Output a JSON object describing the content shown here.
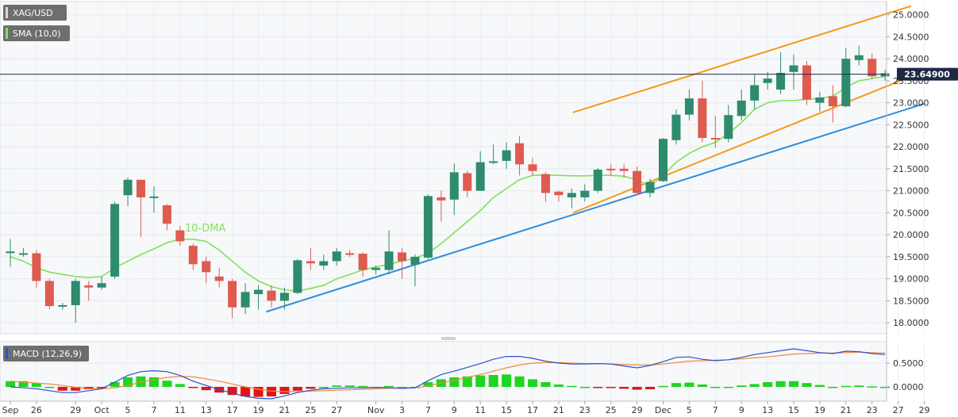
{
  "chart_data": {
    "type": "candlestick",
    "panes": {
      "price": {
        "symbol": "XAG/USD",
        "indicator": "SMA (10,0)",
        "ylim": [
          17.75,
          25.3
        ],
        "yticks": [
          "25.0000",
          "24.5000",
          "24.0000",
          "23.5000",
          "23.0000",
          "22.5000",
          "22.0000",
          "21.5000",
          "21.0000",
          "20.5000",
          "20.0000",
          "19.5000",
          "19.0000",
          "18.5000",
          "18.0000"
        ],
        "last_price": "23.64900",
        "last_value": 23.649,
        "annotation": "10-DMA"
      },
      "macd": {
        "label": "MACD (12,26,9)",
        "ylim": [
          -0.3,
          0.95
        ],
        "yticks": [
          "0.5000",
          "0.0000"
        ]
      }
    },
    "x_axis": {
      "ticks": [
        {
          "i": 0,
          "label": "Sep"
        },
        {
          "i": 2,
          "label": "26"
        },
        {
          "i": 5,
          "label": "29"
        },
        {
          "i": 7,
          "label": "Oct"
        },
        {
          "i": 9,
          "label": "5"
        },
        {
          "i": 11,
          "label": "7"
        },
        {
          "i": 13,
          "label": "11"
        },
        {
          "i": 15,
          "label": "13"
        },
        {
          "i": 17,
          "label": "17"
        },
        {
          "i": 19,
          "label": "19"
        },
        {
          "i": 21,
          "label": "21"
        },
        {
          "i": 23,
          "label": "25"
        },
        {
          "i": 25,
          "label": "27"
        },
        {
          "i": 28,
          "label": "Nov"
        },
        {
          "i": 30,
          "label": "3"
        },
        {
          "i": 32,
          "label": "7"
        },
        {
          "i": 34,
          "label": "9"
        },
        {
          "i": 36,
          "label": "11"
        },
        {
          "i": 38,
          "label": "15"
        },
        {
          "i": 40,
          "label": "17"
        },
        {
          "i": 42,
          "label": "21"
        },
        {
          "i": 44,
          "label": "23"
        },
        {
          "i": 46,
          "label": "25"
        },
        {
          "i": 48,
          "label": "29"
        },
        {
          "i": 50,
          "label": "Dec"
        },
        {
          "i": 52,
          "label": "5"
        },
        {
          "i": 54,
          "label": "7"
        },
        {
          "i": 56,
          "label": "9"
        },
        {
          "i": 58,
          "label": "13"
        },
        {
          "i": 60,
          "label": "15"
        },
        {
          "i": 62,
          "label": "19"
        },
        {
          "i": 64,
          "label": "21"
        },
        {
          "i": 66,
          "label": "23"
        },
        {
          "i": 68,
          "label": "27"
        },
        {
          "i": 70,
          "label": "29"
        }
      ]
    },
    "candles": [
      [
        19.62,
        19.62,
        19.9,
        19.28
      ],
      [
        19.58,
        19.58,
        19.7,
        19.5
      ],
      [
        19.58,
        18.95,
        19.65,
        18.8
      ],
      [
        18.95,
        18.38,
        19.0,
        18.3
      ],
      [
        18.38,
        18.4,
        18.45,
        18.3
      ],
      [
        18.4,
        18.95,
        19.0,
        18.0
      ],
      [
        18.85,
        18.8,
        18.95,
        18.5
      ],
      [
        18.8,
        18.9,
        19.05,
        18.75
      ],
      [
        19.05,
        20.7,
        20.75,
        19.0
      ],
      [
        20.9,
        21.25,
        21.3,
        20.65
      ],
      [
        21.25,
        20.85,
        21.15,
        19.95
      ],
      [
        20.85,
        20.87,
        21.1,
        20.5
      ],
      [
        20.67,
        20.25,
        20.7,
        20.1
      ],
      [
        20.1,
        19.85,
        20.2,
        19.75
      ],
      [
        19.75,
        19.33,
        19.8,
        19.2
      ],
      [
        19.4,
        19.15,
        19.5,
        18.9
      ],
      [
        19.05,
        18.95,
        19.25,
        18.8
      ],
      [
        18.95,
        18.35,
        19.0,
        18.1
      ],
      [
        18.35,
        18.7,
        18.9,
        18.2
      ],
      [
        18.65,
        18.75,
        18.85,
        18.3
      ],
      [
        18.73,
        18.5,
        18.85,
        18.35
      ],
      [
        18.5,
        18.68,
        18.8,
        18.3
      ],
      [
        18.68,
        19.42,
        19.45,
        18.65
      ],
      [
        19.4,
        19.35,
        19.7,
        19.2
      ],
      [
        19.3,
        19.4,
        19.55,
        19.2
      ],
      [
        19.4,
        19.62,
        19.7,
        19.3
      ],
      [
        19.58,
        19.57,
        19.65,
        19.5
      ],
      [
        19.57,
        19.2,
        19.6,
        19.05
      ],
      [
        19.2,
        19.25,
        19.3,
        19.1
      ],
      [
        19.2,
        19.62,
        20.1,
        19.1
      ],
      [
        19.6,
        19.4,
        19.7,
        19.0
      ],
      [
        19.32,
        19.5,
        19.55,
        18.83
      ],
      [
        19.48,
        20.88,
        20.92,
        19.45
      ],
      [
        20.85,
        20.78,
        21.0,
        20.3
      ],
      [
        20.8,
        21.42,
        21.62,
        20.45
      ],
      [
        21.4,
        21.0,
        21.45,
        20.85
      ],
      [
        21.0,
        21.65,
        21.9,
        21.0
      ],
      [
        21.65,
        21.67,
        22.05,
        21.6
      ],
      [
        21.68,
        21.92,
        22.1,
        21.5
      ],
      [
        22.08,
        21.6,
        22.25,
        21.35
      ],
      [
        21.6,
        21.45,
        21.75,
        21.35
      ],
      [
        21.38,
        20.95,
        21.42,
        20.75
      ],
      [
        20.98,
        20.9,
        21.0,
        20.75
      ],
      [
        20.85,
        20.95,
        21.05,
        20.6
      ],
      [
        20.85,
        21.0,
        21.15,
        20.75
      ],
      [
        21.0,
        21.48,
        21.52,
        20.95
      ],
      [
        21.5,
        21.48,
        21.6,
        21.35
      ],
      [
        21.5,
        21.45,
        21.6,
        21.3
      ],
      [
        21.45,
        20.95,
        21.55,
        20.9
      ],
      [
        20.95,
        21.2,
        21.28,
        20.85
      ],
      [
        21.22,
        22.18,
        22.2,
        21.2
      ],
      [
        22.15,
        22.73,
        22.85,
        22.05
      ],
      [
        22.73,
        23.1,
        23.3,
        22.6
      ],
      [
        23.1,
        22.2,
        23.5,
        22.1
      ],
      [
        22.2,
        22.18,
        22.7,
        21.98
      ],
      [
        22.18,
        22.72,
        22.95,
        22.1
      ],
      [
        22.7,
        23.05,
        23.3,
        22.6
      ],
      [
        23.05,
        23.4,
        23.65,
        22.85
      ],
      [
        23.45,
        23.55,
        23.7,
        23.3
      ],
      [
        23.3,
        23.68,
        24.15,
        23.2
      ],
      [
        23.7,
        23.85,
        24.1,
        23.3
      ],
      [
        23.85,
        23.07,
        23.95,
        22.95
      ],
      [
        23.0,
        23.12,
        23.25,
        22.8
      ],
      [
        23.15,
        22.92,
        23.4,
        22.55
      ],
      [
        22.92,
        24.0,
        24.25,
        22.9
      ],
      [
        23.97,
        24.08,
        24.3,
        23.85
      ],
      [
        24.0,
        23.6,
        24.12,
        23.55
      ],
      [
        23.6,
        23.67,
        23.75,
        23.5
      ]
    ],
    "sma": [
      19.5,
      19.4,
      19.25,
      19.15,
      19.1,
      19.05,
      19.03,
      19.05,
      19.25,
      19.4,
      19.55,
      19.68,
      19.82,
      19.9,
      19.9,
      19.85,
      19.65,
      19.4,
      19.15,
      18.95,
      18.82,
      18.75,
      18.72,
      18.78,
      18.85,
      19.0,
      19.1,
      19.2,
      19.27,
      19.33,
      19.4,
      19.47,
      19.58,
      19.8,
      20.05,
      20.3,
      20.55,
      20.85,
      21.05,
      21.25,
      21.35,
      21.36,
      21.35,
      21.34,
      21.34,
      21.35,
      21.35,
      21.33,
      21.25,
      21.1,
      21.35,
      21.65,
      21.85,
      22.0,
      22.1,
      22.3,
      22.55,
      22.85,
      23.0,
      23.05,
      23.05,
      23.08,
      23.1,
      23.15,
      23.35,
      23.5,
      23.55,
      23.6
    ],
    "trendlines": [
      {
        "name": "support-blue",
        "color": "#2f8ddc",
        "from": [
          19.6,
          18.25
        ],
        "to": [
          70.0,
          22.98
        ]
      },
      {
        "name": "channel-upper-orange",
        "color": "#f59a1b",
        "from": [
          43.1,
          22.78
        ],
        "to": [
          69.0,
          25.2
        ]
      },
      {
        "name": "channel-lower-orange",
        "color": "#f59a1b",
        "from": [
          43.1,
          20.5
        ],
        "to": [
          70.0,
          23.72
        ]
      }
    ],
    "macd": {
      "hist": [
        0.12,
        0.12,
        0.08,
        0.0,
        -0.08,
        -0.08,
        -0.05,
        -0.02,
        0.1,
        0.2,
        0.22,
        0.2,
        0.13,
        0.06,
        -0.02,
        -0.07,
        -0.12,
        -0.17,
        -0.2,
        -0.21,
        -0.2,
        -0.15,
        -0.08,
        -0.04,
        0.0,
        0.03,
        0.03,
        0.02,
        0.0,
        0.02,
        0.0,
        0.0,
        0.1,
        0.16,
        0.2,
        0.22,
        0.24,
        0.25,
        0.26,
        0.22,
        0.16,
        0.1,
        0.05,
        0.02,
        0.0,
        -0.01,
        -0.02,
        -0.04,
        -0.06,
        -0.05,
        0.02,
        0.08,
        0.09,
        0.05,
        0.0,
        0.0,
        0.03,
        0.06,
        0.1,
        0.12,
        0.12,
        0.08,
        0.04,
        0.0,
        0.02,
        0.03,
        0.01,
        0.0
      ],
      "macd_line": [
        0.0,
        -0.02,
        -0.04,
        -0.08,
        -0.12,
        -0.12,
        -0.08,
        -0.04,
        0.1,
        0.24,
        0.32,
        0.34,
        0.32,
        0.24,
        0.12,
        0.03,
        -0.06,
        -0.13,
        -0.2,
        -0.24,
        -0.25,
        -0.19,
        -0.12,
        -0.07,
        -0.04,
        -0.03,
        -0.02,
        -0.02,
        -0.01,
        -0.02,
        -0.03,
        -0.02,
        0.13,
        0.26,
        0.33,
        0.41,
        0.49,
        0.58,
        0.64,
        0.64,
        0.6,
        0.54,
        0.5,
        0.48,
        0.48,
        0.49,
        0.48,
        0.44,
        0.4,
        0.45,
        0.53,
        0.62,
        0.63,
        0.58,
        0.55,
        0.57,
        0.62,
        0.68,
        0.72,
        0.76,
        0.8,
        0.76,
        0.72,
        0.7,
        0.75,
        0.74,
        0.7,
        0.68
      ],
      "signal_line": [
        0.12,
        0.1,
        0.08,
        0.06,
        0.03,
        -0.01,
        -0.03,
        -0.04,
        -0.02,
        0.03,
        0.1,
        0.15,
        0.2,
        0.22,
        0.21,
        0.17,
        0.12,
        0.06,
        0.0,
        -0.05,
        -0.09,
        -0.1,
        -0.1,
        -0.09,
        -0.08,
        -0.07,
        -0.06,
        -0.05,
        -0.04,
        -0.03,
        -0.03,
        -0.02,
        0.02,
        0.08,
        0.14,
        0.2,
        0.26,
        0.33,
        0.4,
        0.46,
        0.5,
        0.51,
        0.51,
        0.5,
        0.49,
        0.49,
        0.48,
        0.47,
        0.46,
        0.46,
        0.48,
        0.51,
        0.54,
        0.55,
        0.56,
        0.57,
        0.59,
        0.61,
        0.63,
        0.66,
        0.69,
        0.7,
        0.71,
        0.71,
        0.72,
        0.73,
        0.72,
        0.71
      ]
    },
    "colors": {
      "up": "#2e8b6e",
      "down": "#de5b50",
      "sma": "#7fe25a",
      "macd_line": "#2f4fd0",
      "signal_line": "#f08a3a",
      "hist_up": "#1fd51f",
      "hist_down": "#e41414",
      "last_price_line": "#1e2a44"
    },
    "legend": "top-left"
  }
}
